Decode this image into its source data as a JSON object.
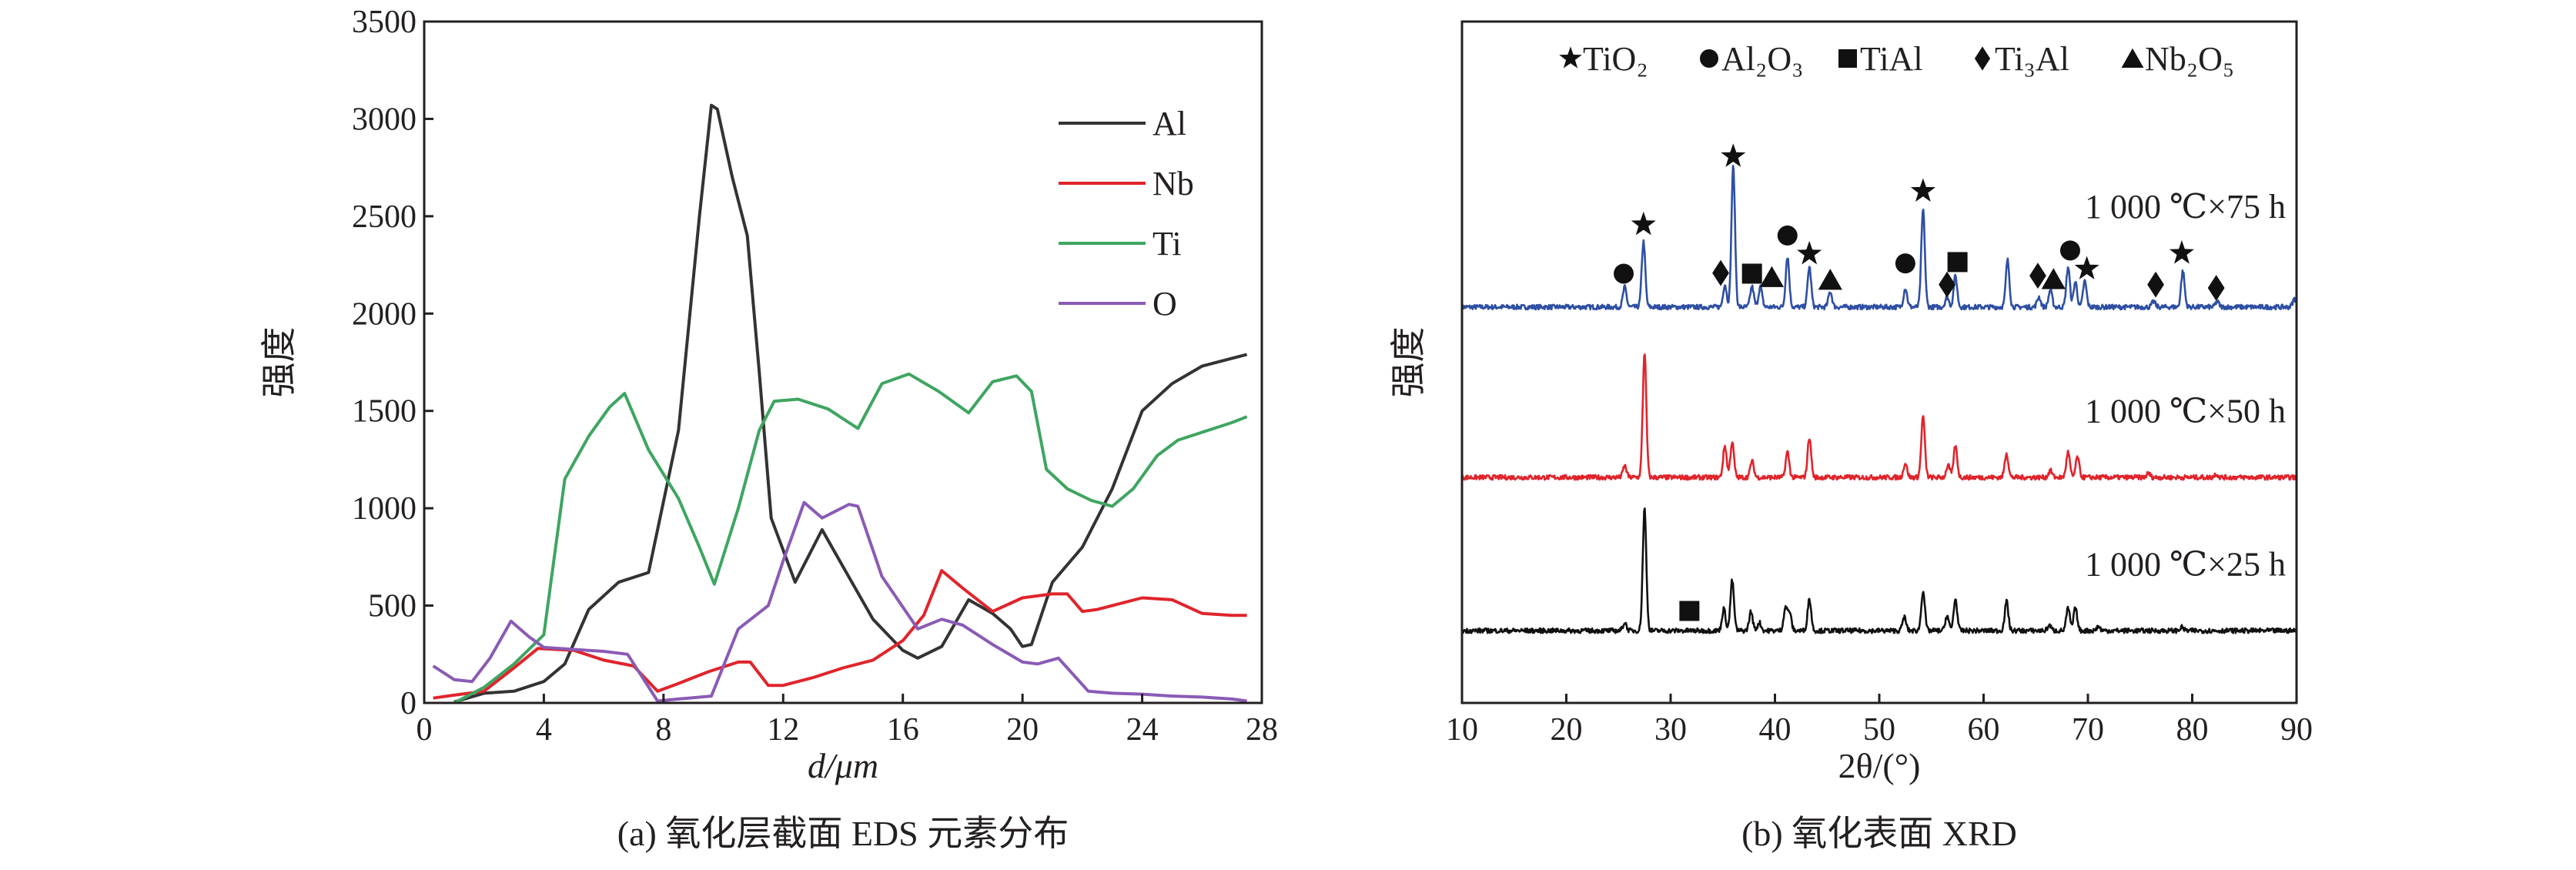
{
  "chart_data": [
    {
      "type": "line",
      "caption": "(a) 氧化层截面 EDS 元素分布",
      "xlabel": "d/μm",
      "ylabel": "强度",
      "xlim": [
        0,
        28
      ],
      "ylim": [
        0,
        3500
      ],
      "xticks": [
        0,
        4,
        8,
        12,
        16,
        20,
        24,
        28
      ],
      "yticks": [
        0,
        500,
        1000,
        1500,
        2000,
        2500,
        3000,
        3500
      ],
      "grid": false,
      "legend_position": "top-right",
      "series": [
        {
          "name": "Al",
          "color": "#333333",
          "points": [
            [
              1,
              5
            ],
            [
              2,
              50
            ],
            [
              3,
              60
            ],
            [
              4,
              110
            ],
            [
              4.7,
              200
            ],
            [
              5.5,
              480
            ],
            [
              6.5,
              620
            ],
            [
              7.5,
              670
            ],
            [
              8.5,
              1400
            ],
            [
              9.2,
              2500
            ],
            [
              9.6,
              3070
            ],
            [
              9.8,
              3050
            ],
            [
              10.3,
              2700
            ],
            [
              10.8,
              2400
            ],
            [
              11.2,
              1700
            ],
            [
              11.6,
              950
            ],
            [
              12.4,
              620
            ],
            [
              13.3,
              890
            ],
            [
              14,
              700
            ],
            [
              15,
              430
            ],
            [
              16,
              270
            ],
            [
              16.5,
              230
            ],
            [
              17.3,
              290
            ],
            [
              18.2,
              530
            ],
            [
              19,
              460
            ],
            [
              19.6,
              380
            ],
            [
              20,
              290
            ],
            [
              20.3,
              300
            ],
            [
              21,
              620
            ],
            [
              22,
              800
            ],
            [
              23,
              1100
            ],
            [
              24,
              1500
            ],
            [
              25,
              1640
            ],
            [
              26,
              1730
            ],
            [
              27,
              1770
            ],
            [
              27.5,
              1790
            ]
          ]
        },
        {
          "name": "Nb",
          "color": "#e0242b",
          "points": [
            [
              0.3,
              25
            ],
            [
              1,
              40
            ],
            [
              2,
              60
            ],
            [
              3,
              180
            ],
            [
              3.8,
              280
            ],
            [
              5,
              270
            ],
            [
              6,
              220
            ],
            [
              7,
              190
            ],
            [
              7.8,
              60
            ],
            [
              8.5,
              100
            ],
            [
              9.5,
              160
            ],
            [
              10.5,
              210
            ],
            [
              10.9,
              210
            ],
            [
              11.5,
              90
            ],
            [
              12,
              90
            ],
            [
              13,
              130
            ],
            [
              14,
              180
            ],
            [
              15,
              220
            ],
            [
              16,
              320
            ],
            [
              16.7,
              450
            ],
            [
              17.3,
              680
            ],
            [
              18,
              590
            ],
            [
              19,
              470
            ],
            [
              20,
              540
            ],
            [
              21,
              560
            ],
            [
              21.5,
              560
            ],
            [
              22,
              470
            ],
            [
              22.5,
              480
            ],
            [
              23,
              500
            ],
            [
              24,
              540
            ],
            [
              25,
              530
            ],
            [
              26,
              460
            ],
            [
              27,
              450
            ],
            [
              27.5,
              450
            ]
          ]
        },
        {
          "name": "Ti",
          "color": "#3ea561",
          "points": [
            [
              1,
              0
            ],
            [
              2,
              80
            ],
            [
              3,
              200
            ],
            [
              4,
              350
            ],
            [
              4.7,
              1150
            ],
            [
              5.5,
              1370
            ],
            [
              6.2,
              1520
            ],
            [
              6.7,
              1590
            ],
            [
              7.5,
              1300
            ],
            [
              8.5,
              1050
            ],
            [
              9.2,
              800
            ],
            [
              9.7,
              610
            ],
            [
              10.5,
              1000
            ],
            [
              11.2,
              1400
            ],
            [
              11.7,
              1550
            ],
            [
              12.5,
              1560
            ],
            [
              13.5,
              1510
            ],
            [
              14.5,
              1410
            ],
            [
              15.3,
              1640
            ],
            [
              16.2,
              1690
            ],
            [
              17.2,
              1600
            ],
            [
              18.2,
              1490
            ],
            [
              19,
              1650
            ],
            [
              19.8,
              1680
            ],
            [
              20.3,
              1600
            ],
            [
              20.8,
              1200
            ],
            [
              21.5,
              1100
            ],
            [
              22.3,
              1040
            ],
            [
              23,
              1010
            ],
            [
              23.7,
              1100
            ],
            [
              24.5,
              1270
            ],
            [
              25.2,
              1350
            ],
            [
              26,
              1390
            ],
            [
              27,
              1440
            ],
            [
              27.5,
              1470
            ]
          ]
        },
        {
          "name": "O",
          "color": "#8a5bb5",
          "points": [
            [
              0.3,
              190
            ],
            [
              1,
              120
            ],
            [
              1.6,
              110
            ],
            [
              2.2,
              230
            ],
            [
              2.9,
              420
            ],
            [
              3.5,
              340
            ],
            [
              4,
              285
            ],
            [
              5,
              275
            ],
            [
              6,
              265
            ],
            [
              6.8,
              250
            ],
            [
              7.8,
              10
            ],
            [
              8.5,
              20
            ],
            [
              9.6,
              35
            ],
            [
              10.5,
              380
            ],
            [
              11.5,
              500
            ],
            [
              12,
              730
            ],
            [
              12.7,
              1030
            ],
            [
              13.3,
              950
            ],
            [
              14.2,
              1020
            ],
            [
              14.5,
              1010
            ],
            [
              15.3,
              650
            ],
            [
              16.5,
              380
            ],
            [
              17.3,
              430
            ],
            [
              18,
              400
            ],
            [
              19,
              300
            ],
            [
              20,
              210
            ],
            [
              20.5,
              200
            ],
            [
              21.2,
              230
            ],
            [
              22.2,
              60
            ],
            [
              23,
              50
            ],
            [
              24,
              45
            ],
            [
              25,
              35
            ],
            [
              26,
              30
            ],
            [
              27,
              20
            ],
            [
              27.5,
              10
            ]
          ]
        }
      ]
    },
    {
      "type": "line",
      "caption": "(b) 氧化表面 XRD",
      "xlabel": "2θ/(°)",
      "ylabel": "强度",
      "xlim": [
        10,
        90
      ],
      "ylim": [
        0,
        100
      ],
      "y_tick_labels_shown": false,
      "xticks": [
        10,
        20,
        30,
        40,
        50,
        60,
        70,
        80,
        90
      ],
      "grid": false,
      "legend_position": "top",
      "legend": [
        {
          "symbol": "star",
          "label": "★",
          "name": "TiO₂"
        },
        {
          "symbol": "circle",
          "label": "●",
          "name": "Al₂O₃"
        },
        {
          "symbol": "square",
          "label": "■",
          "name": "TiAl"
        },
        {
          "symbol": "diamond",
          "label": "♦",
          "name": "Ti₃Al"
        },
        {
          "symbol": "triangle",
          "label": "▲",
          "name": "Nb₂O₅"
        }
      ],
      "series": [
        {
          "name": "1 000 ℃×75 h",
          "color": "#2e4fa3",
          "baseline": 58.1,
          "label_y": 73,
          "peaks": [
            [
              25.6,
              2.9
            ],
            [
              27.4,
              9.6
            ],
            [
              35.2,
              3.3
            ],
            [
              36.0,
              20.6
            ],
            [
              37.8,
              3
            ],
            [
              38.6,
              3
            ],
            [
              41.2,
              7.4
            ],
            [
              43.3,
              5.9
            ],
            [
              45.3,
              2.3
            ],
            [
              52.5,
              2.8
            ],
            [
              54.2,
              14.3
            ],
            [
              56.5,
              1.5
            ],
            [
              57.3,
              4.5
            ],
            [
              62.3,
              6.9
            ],
            [
              65.3,
              1.5
            ],
            [
              66.4,
              2.5
            ],
            [
              68.1,
              5.9
            ],
            [
              68.8,
              3.7
            ],
            [
              69.7,
              3.8
            ],
            [
              76.3,
              0.8
            ],
            [
              79.1,
              5.3
            ],
            [
              82.4,
              0.8
            ],
            [
              89.8,
              1.2
            ]
          ],
          "markers": [
            [
              "circle",
              25.5,
              63.0
            ],
            [
              "star",
              27.4,
              70.2
            ],
            [
              "diamond",
              34.8,
              63.1
            ],
            [
              "star",
              36.0,
              80.2
            ],
            [
              "square",
              37.8,
              63.0
            ],
            [
              "triangle",
              39.7,
              62.5
            ],
            [
              "circle",
              41.2,
              68.6
            ],
            [
              "star",
              43.3,
              65.9
            ],
            [
              "triangle",
              45.3,
              62.1
            ],
            [
              "circle",
              52.5,
              64.5
            ],
            [
              "star",
              54.2,
              75.1
            ],
            [
              "diamond",
              56.5,
              61.4
            ],
            [
              "square",
              57.5,
              64.7
            ],
            [
              "diamond",
              65.2,
              62.7
            ],
            [
              "triangle",
              66.7,
              62.2
            ],
            [
              "circle",
              68.3,
              66.4
            ],
            [
              "star",
              69.9,
              63.7
            ],
            [
              "diamond",
              76.5,
              61.4
            ],
            [
              "star",
              79.0,
              66.0
            ],
            [
              "diamond",
              82.3,
              60.9
            ]
          ]
        },
        {
          "name": "1 000 ℃×50 h",
          "color": "#e0242b",
          "baseline": 33.1,
          "label_y": 43,
          "peaks": [
            [
              25.6,
              1.7
            ],
            [
              27.5,
              18.4
            ],
            [
              35.2,
              4.6
            ],
            [
              35.9,
              5.2
            ],
            [
              37.8,
              2.4
            ],
            [
              41.2,
              3.7
            ],
            [
              43.3,
              5.9
            ],
            [
              52.5,
              2.1
            ],
            [
              54.2,
              9
            ],
            [
              56.6,
              1.8
            ],
            [
              57.3,
              4.6
            ],
            [
              62.2,
              3.6
            ],
            [
              66.4,
              1
            ],
            [
              68.1,
              3.7
            ],
            [
              69,
              3
            ],
            [
              75.8,
              0.6
            ],
            [
              82.3,
              0.5
            ]
          ],
          "markers": []
        },
        {
          "name": "1 000 ℃×25 h",
          "color": "#111111",
          "baseline": 10.6,
          "label_y": 20.5,
          "peaks": [
            [
              25.6,
              1.2
            ],
            [
              27.5,
              17.9
            ],
            [
              35.1,
              3.2
            ],
            [
              35.9,
              7.4
            ],
            [
              37.7,
              2.8
            ],
            [
              38.5,
              1.2
            ],
            [
              41,
              3.3
            ],
            [
              41.4,
              2.7
            ],
            [
              43.3,
              4.7
            ],
            [
              52.4,
              2
            ],
            [
              54.2,
              5.9
            ],
            [
              56.5,
              2.2
            ],
            [
              57.3,
              4.6
            ],
            [
              62.2,
              4.3
            ],
            [
              66.3,
              0.8
            ],
            [
              68.1,
              3.3
            ],
            [
              68.8,
              3.3
            ],
            [
              71,
              0.6
            ],
            [
              79,
              0.5
            ]
          ],
          "markers": [
            [
              "square",
              31.8,
              13.5
            ]
          ]
        }
      ]
    }
  ]
}
